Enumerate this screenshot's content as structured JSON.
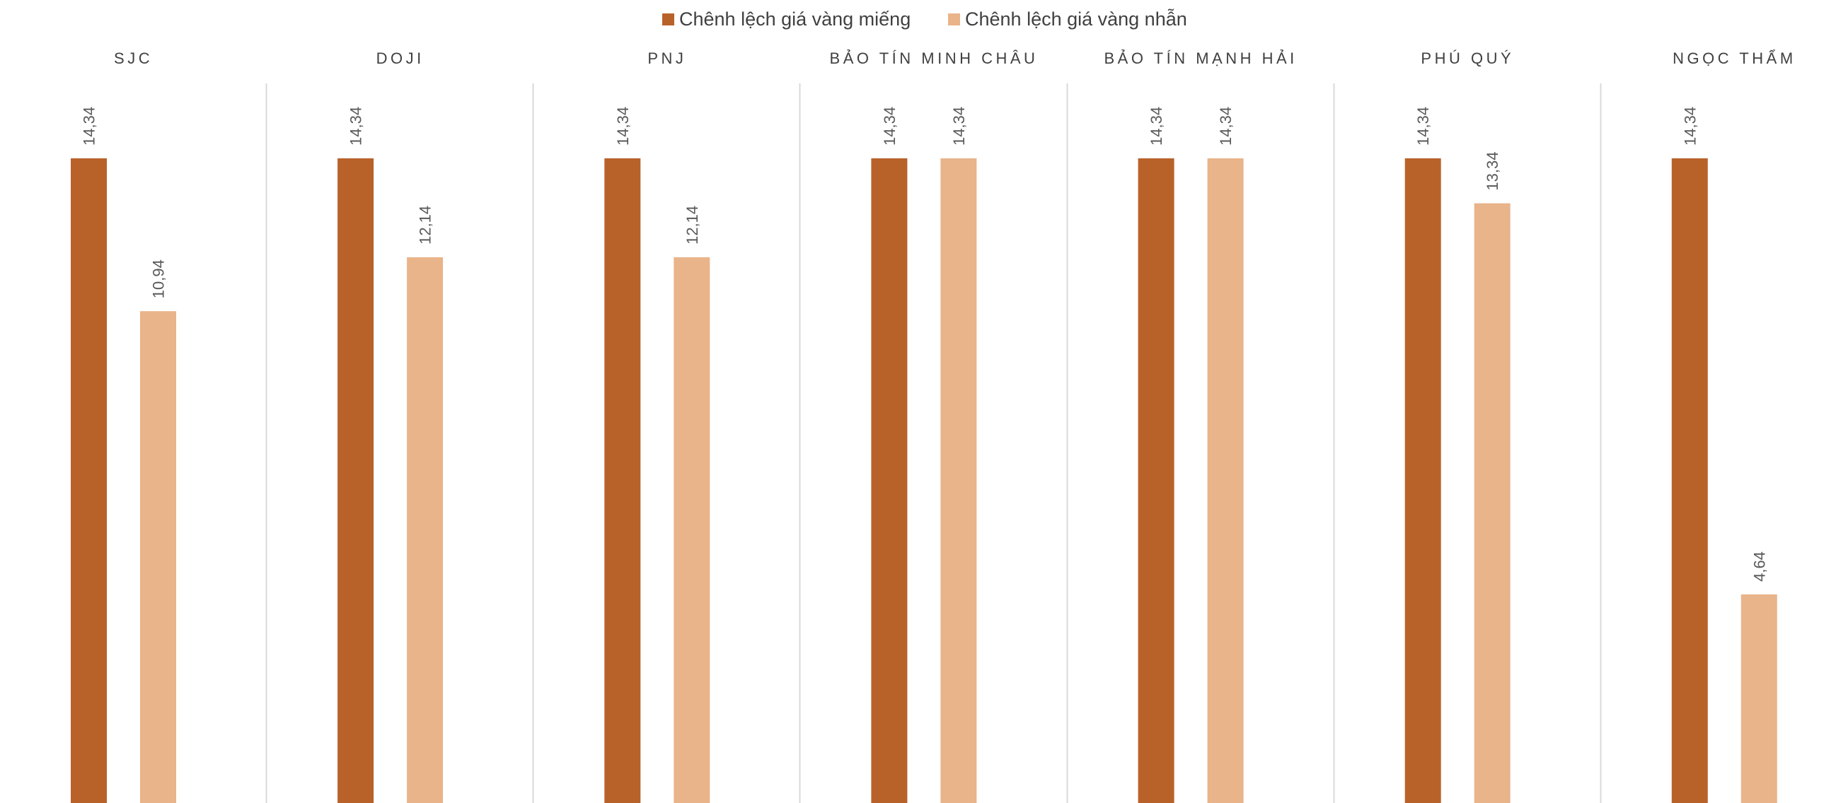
{
  "chart_data": {
    "type": "bar",
    "orientation": "vertical",
    "categories": [
      "SJC",
      "DOJI",
      "PNJ",
      "BẢO TÍN MINH CHÂU",
      "BẢO TÍN MẠNH HẢI",
      "PHÚ QUÝ",
      "NGỌC THẨM"
    ],
    "series": [
      {
        "name": "Chênh lệch giá vàng miếng",
        "color": "#B8622A",
        "values": [
          14.34,
          14.34,
          14.34,
          14.34,
          14.34,
          14.34,
          14.34
        ],
        "labels": [
          "14,34",
          "14,34",
          "14,34",
          "14,34",
          "14,34",
          "14,34",
          "14,34"
        ]
      },
      {
        "name": "Chênh lệch giá vàng nhẫn",
        "color": "#E9B48A",
        "values": [
          10.94,
          12.14,
          12.14,
          14.34,
          14.34,
          13.34,
          4.64
        ],
        "labels": [
          "10,94",
          "12,14",
          "12,14",
          "14,34",
          "14,34",
          "13,34",
          "4,64"
        ]
      }
    ],
    "legend_position": "top-center",
    "category_labels_position": "top",
    "data_labels": "rotated-above-bar",
    "grid": false,
    "ylim": [
      0,
      16
    ]
  }
}
